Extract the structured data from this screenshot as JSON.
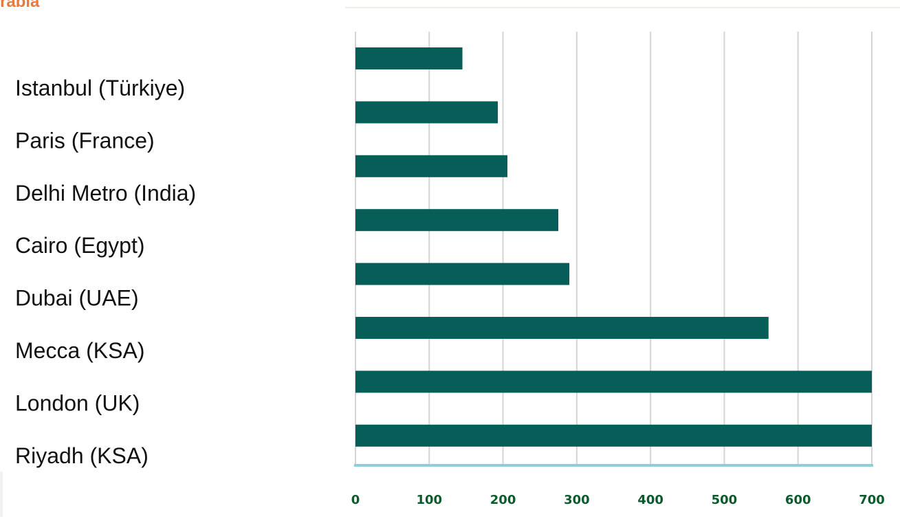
{
  "header_fragment": "rabia",
  "colors": {
    "bar": "#075e58",
    "header": "#e77a3c",
    "tick_label": "#0a5a2b",
    "category_label": "#111111",
    "gridline": "#d4d4d4",
    "baseline": "#8ad0d6",
    "top_rule": "#efefe9"
  },
  "chart_data": {
    "type": "bar",
    "orientation": "horizontal",
    "categories": [
      "Istanbul (Türkiye)",
      "Paris (France)",
      "Delhi Metro (India)",
      "Cairo (Egypt)",
      "Dubai (UAE)",
      "Mecca (KSA)",
      "London (UK)",
      "Riyadh (KSA)"
    ],
    "values": [
      145,
      193,
      206,
      275,
      290,
      560,
      700,
      700
    ],
    "xlim": [
      0,
      700
    ],
    "xticks": [
      0,
      100,
      200,
      300,
      400,
      500,
      600,
      700
    ],
    "grid": true,
    "title": "",
    "xlabel": "",
    "ylabel": ""
  }
}
